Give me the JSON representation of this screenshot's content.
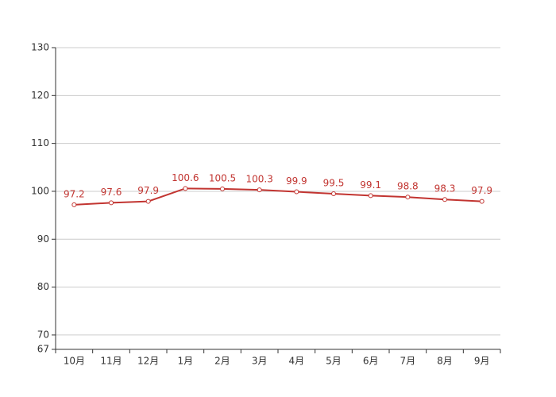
{
  "chart_data": {
    "type": "line",
    "categories": [
      "10月",
      "11月",
      "12月",
      "1月",
      "2月",
      "3月",
      "4月",
      "5月",
      "6月",
      "7月",
      "8月",
      "9月"
    ],
    "series": [
      {
        "color": "#c23531",
        "values": [
          97.2,
          97.6,
          97.9,
          100.6,
          100.5,
          100.3,
          99.9,
          99.5,
          99.1,
          98.8,
          98.3,
          97.9
        ]
      }
    ],
    "ylim": [
      67,
      130
    ],
    "yticks": [
      67,
      70,
      80,
      90,
      100,
      110,
      120,
      130
    ],
    "grid": true
  }
}
